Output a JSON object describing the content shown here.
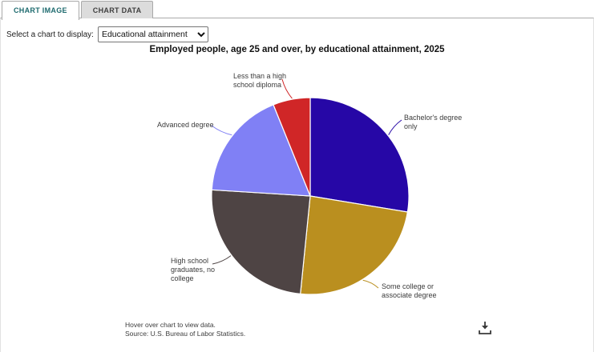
{
  "tabs": [
    {
      "label": "CHART IMAGE",
      "active": true
    },
    {
      "label": "CHART DATA",
      "active": false
    }
  ],
  "controls": {
    "select_label": "Select a chart to display:",
    "selected_option": "Educational attainment"
  },
  "chart_data": {
    "type": "pie",
    "title": "Employed people, age 25 and over, by educational attainment, 2025",
    "direction": "clockwise",
    "start_angle_deg": 0,
    "legend_position": "callout-labels",
    "slices": [
      {
        "label": "Bachelor's degree only",
        "value": 27.6,
        "color": "#2607A6"
      },
      {
        "label": "Some college or associate degree",
        "value": 24.0,
        "color": "#BA8F1F"
      },
      {
        "label": "High school graduates, no college",
        "value": 24.4,
        "color": "#4E4444"
      },
      {
        "label": "Advanced degree",
        "value": 17.9,
        "color": "#8080F5"
      },
      {
        "label": "Less than a high school diploma",
        "value": 6.1,
        "color": "#D02627"
      }
    ]
  },
  "footer": {
    "line1": "Hover over chart to view data.",
    "line2": "Source: U.S. Bureau of Labor Statistics."
  },
  "icons": {
    "download": "download-icon"
  },
  "ui_colors": {
    "tab_active_text": "#1D6A6E",
    "tab_inactive_bg": "#DCDCDC",
    "panel_border": "#ABABAB"
  }
}
